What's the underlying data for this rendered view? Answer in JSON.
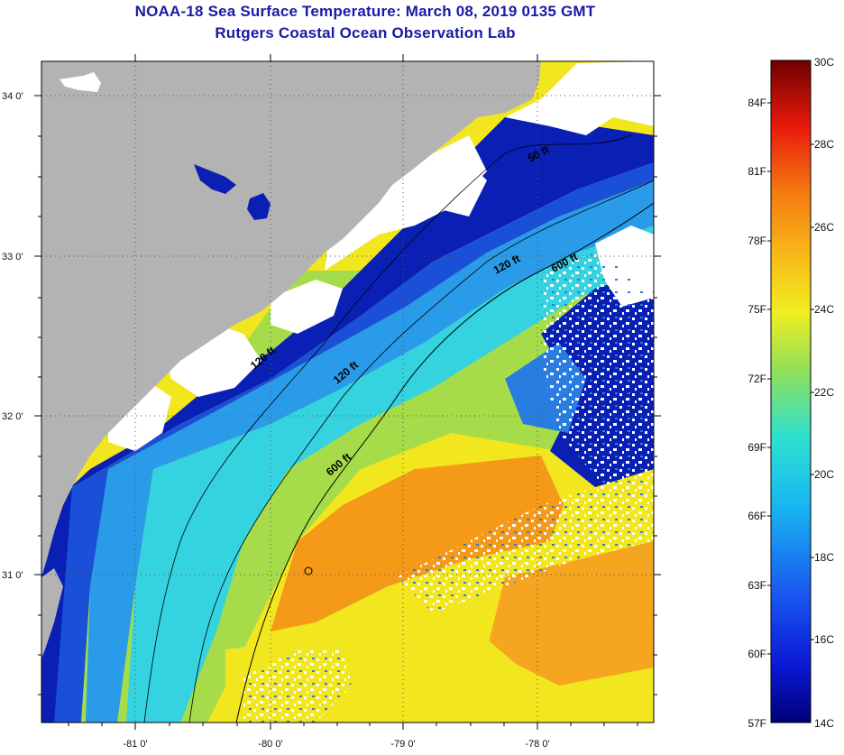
{
  "header": {
    "title_line1": "NOAA-18 Sea Surface Temperature:  March 08, 2019 0135 GMT",
    "title_line2": "Rutgers Coastal Ocean Observation Lab"
  },
  "map": {
    "lat_labels": [
      "34 0'",
      "33 0'",
      "32 0'",
      "31 0'"
    ],
    "lon_labels": [
      "-81 0'",
      "-80 0'",
      "-79 0'",
      "-78 0'"
    ],
    "contour_labels": [
      "50 ft",
      "120 ft",
      "600 ft",
      "120 ft",
      "600 ft",
      "120 ft"
    ],
    "colors": {
      "land": "#b3b3b3",
      "clouds": "#ffffff",
      "cold": "#0a1fb4",
      "cool": "#2a7de0",
      "cyan": "#35d2e0",
      "green": "#8fdc5a",
      "yellow": "#f2e61e",
      "orange": "#f59a18"
    }
  },
  "colorbar": {
    "fahrenheit": [
      "84F",
      "81F",
      "78F",
      "75F",
      "72F",
      "69F",
      "66F",
      "63F",
      "60F",
      "57F"
    ],
    "celsius": [
      "30C",
      "28C",
      "26C",
      "24C",
      "22C",
      "20C",
      "18C",
      "16C",
      "14C"
    ]
  }
}
